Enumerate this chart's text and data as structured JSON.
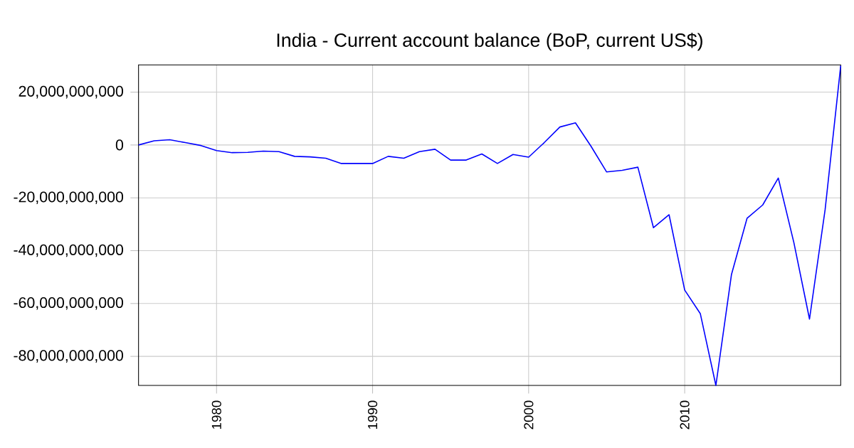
{
  "chart_data": {
    "type": "line",
    "title": "India - Current account balance (BoP, current US$)",
    "x": [
      1975,
      1976,
      1977,
      1978,
      1979,
      1980,
      1981,
      1982,
      1983,
      1984,
      1985,
      1986,
      1987,
      1988,
      1989,
      1990,
      1991,
      1992,
      1993,
      1994,
      1995,
      1996,
      1997,
      1998,
      1999,
      2000,
      2001,
      2002,
      2003,
      2004,
      2005,
      2006,
      2007,
      2008,
      2009,
      2010,
      2011,
      2012,
      2013,
      2014,
      2015,
      2016,
      2017,
      2018,
      2019,
      2020
    ],
    "series": [
      {
        "color": "#0000ff",
        "values": [
          0,
          1600000000,
          2000000000,
          900000000,
          -200000000,
          -2100000000,
          -2900000000,
          -2800000000,
          -2300000000,
          -2500000000,
          -4300000000,
          -4500000000,
          -5000000000,
          -7000000000,
          -7000000000,
          -7000000000,
          -4300000000,
          -5000000000,
          -2500000000,
          -1600000000,
          -5700000000,
          -5700000000,
          -3400000000,
          -7000000000,
          -3600000000,
          -4600000000,
          900000000,
          6800000000,
          8400000000,
          -500000000,
          -10200000000,
          -9600000000,
          -8400000000,
          -31300000000,
          -26400000000,
          -54900000000,
          -63800000000,
          -91000000000,
          -49000000000,
          -27700000000,
          -22700000000,
          -12500000000,
          -37000000000,
          -65900000000,
          -24500000000,
          30000000000
        ]
      }
    ],
    "xlim": [
      1975,
      2020
    ],
    "ylim": [
      -91000000000,
      30300000000
    ],
    "xticks": [
      1980,
      1990,
      2000,
      2010
    ],
    "yticks": [
      {
        "value": -80000000000,
        "label": "-80,000,000,000"
      },
      {
        "value": -60000000000,
        "label": "-60,000,000,000"
      },
      {
        "value": -40000000000,
        "label": "-40,000,000,000"
      },
      {
        "value": -20000000000,
        "label": "-20,000,000,000"
      },
      {
        "value": 0,
        "label": "0"
      },
      {
        "value": 20000000000,
        "label": "20,000,000,000"
      }
    ],
    "grid": true,
    "legend": false,
    "marker": "none",
    "line_style": "solid"
  }
}
